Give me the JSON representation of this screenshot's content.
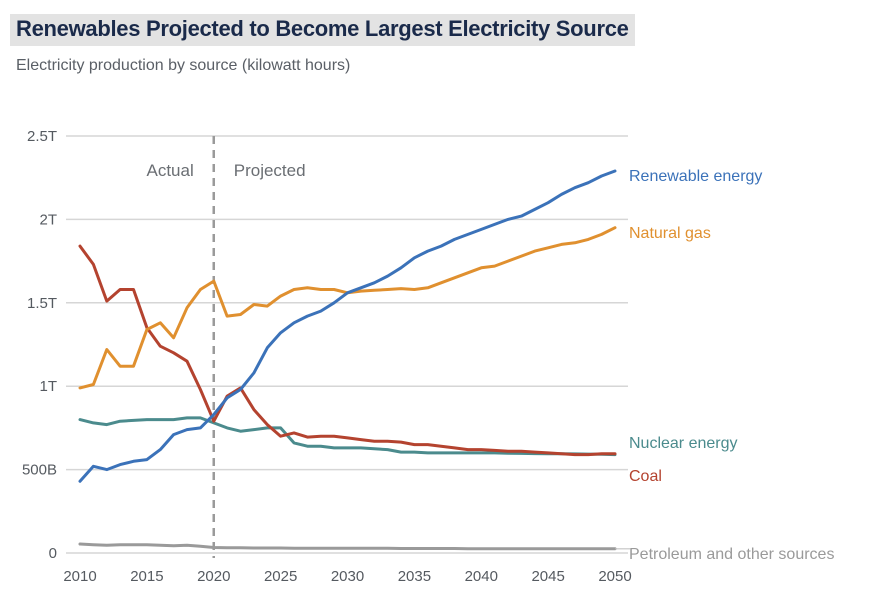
{
  "title": "Renewables Projected to Become Largest Electricity Source",
  "subtitle": "Electricity production by source (kilowatt hours)",
  "chart_data": {
    "type": "line",
    "title": "Renewables Projected to Become Largest Electricity Source",
    "subtitle": "Electricity production by source (kilowatt hours)",
    "xlabel": "",
    "ylabel": "",
    "x": [
      2010,
      2011,
      2012,
      2013,
      2014,
      2015,
      2016,
      2017,
      2018,
      2019,
      2020,
      2021,
      2022,
      2023,
      2024,
      2025,
      2026,
      2027,
      2028,
      2029,
      2030,
      2031,
      2032,
      2033,
      2034,
      2035,
      2036,
      2037,
      2038,
      2039,
      2040,
      2041,
      2042,
      2043,
      2044,
      2045,
      2046,
      2047,
      2048,
      2049,
      2050
    ],
    "xlim": [
      2010,
      2050
    ],
    "ylim": [
      0,
      2.5
    ],
    "y_unit": "trillion kWh",
    "x_ticks": [
      2010,
      2015,
      2020,
      2025,
      2030,
      2035,
      2040,
      2045,
      2050
    ],
    "x_tick_labels": [
      "2010",
      "2015",
      "2020",
      "2025",
      "2030",
      "2035",
      "2040",
      "2045",
      "2050"
    ],
    "y_ticks": [
      0,
      0.5,
      1,
      1.5,
      2,
      2.5
    ],
    "y_tick_labels": [
      "0",
      "500B",
      "1T",
      "1.5T",
      "2T",
      "2.5T"
    ],
    "grid": "horizontal",
    "legend": "inline-right",
    "divider": {
      "x": 2020,
      "left_label": "Actual",
      "right_label": "Projected"
    },
    "series": [
      {
        "name": "Renewable energy",
        "color": "#3b72b9",
        "values": [
          0.43,
          0.52,
          0.5,
          0.53,
          0.55,
          0.56,
          0.62,
          0.71,
          0.74,
          0.75,
          0.83,
          0.93,
          0.98,
          1.08,
          1.23,
          1.32,
          1.38,
          1.42,
          1.45,
          1.5,
          1.56,
          1.59,
          1.62,
          1.66,
          1.71,
          1.77,
          1.81,
          1.84,
          1.88,
          1.91,
          1.94,
          1.97,
          2.0,
          2.02,
          2.06,
          2.1,
          2.15,
          2.19,
          2.22,
          2.26,
          2.29
        ]
      },
      {
        "name": "Natural gas",
        "color": "#e0902f",
        "values": [
          0.99,
          1.01,
          1.22,
          1.12,
          1.12,
          1.34,
          1.38,
          1.29,
          1.47,
          1.58,
          1.63,
          1.42,
          1.43,
          1.49,
          1.48,
          1.54,
          1.58,
          1.59,
          1.58,
          1.58,
          1.56,
          1.57,
          1.575,
          1.58,
          1.585,
          1.58,
          1.59,
          1.62,
          1.65,
          1.68,
          1.71,
          1.72,
          1.75,
          1.78,
          1.81,
          1.83,
          1.85,
          1.86,
          1.88,
          1.91,
          1.95
        ]
      },
      {
        "name": "Nuclear energy",
        "color": "#4b8b8d",
        "values": [
          0.8,
          0.78,
          0.77,
          0.79,
          0.795,
          0.8,
          0.8,
          0.8,
          0.81,
          0.81,
          0.78,
          0.75,
          0.73,
          0.74,
          0.75,
          0.75,
          0.66,
          0.64,
          0.64,
          0.63,
          0.63,
          0.63,
          0.625,
          0.62,
          0.605,
          0.605,
          0.6,
          0.6,
          0.6,
          0.6,
          0.6,
          0.6,
          0.598,
          0.597,
          0.596,
          0.595,
          0.595,
          0.594,
          0.593,
          0.592,
          0.59
        ]
      },
      {
        "name": "Coal",
        "color": "#b4432f",
        "values": [
          1.84,
          1.73,
          1.51,
          1.58,
          1.58,
          1.35,
          1.24,
          1.2,
          1.15,
          0.98,
          0.79,
          0.94,
          0.99,
          0.86,
          0.77,
          0.7,
          0.72,
          0.695,
          0.7,
          0.7,
          0.69,
          0.68,
          0.67,
          0.67,
          0.665,
          0.65,
          0.65,
          0.64,
          0.63,
          0.62,
          0.62,
          0.615,
          0.61,
          0.61,
          0.605,
          0.6,
          0.595,
          0.59,
          0.59,
          0.595,
          0.595
        ]
      },
      {
        "name": "Petroleum and other sources",
        "color": "#9a9a9a",
        "values": [
          0.054,
          0.05,
          0.046,
          0.05,
          0.05,
          0.05,
          0.046,
          0.044,
          0.047,
          0.04,
          0.033,
          0.031,
          0.031,
          0.03,
          0.03,
          0.03,
          0.029,
          0.029,
          0.029,
          0.028,
          0.028,
          0.028,
          0.028,
          0.028,
          0.027,
          0.027,
          0.027,
          0.027,
          0.027,
          0.026,
          0.026,
          0.026,
          0.026,
          0.026,
          0.025,
          0.025,
          0.025,
          0.025,
          0.025,
          0.025,
          0.025
        ]
      }
    ]
  }
}
